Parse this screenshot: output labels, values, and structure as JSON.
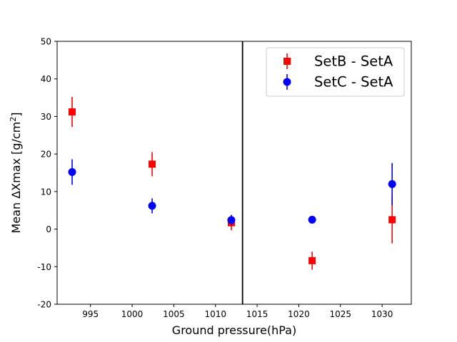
{
  "chart_data": {
    "type": "scatter",
    "xlabel": "Ground pressure(hPa)",
    "ylabel_prefix": "Mean ΔXmax  [g/cm",
    "ylabel_sup": "2",
    "ylabel_suffix": "]",
    "xlim": [
      991,
      1033.5
    ],
    "ylim": [
      -20,
      50
    ],
    "xticks": [
      995,
      1000,
      1005,
      1010,
      1015,
      1020,
      1025,
      1030
    ],
    "yticks": [
      -20,
      -10,
      0,
      10,
      20,
      30,
      40,
      50
    ],
    "vline": 1013.25,
    "legend_position": "top-right",
    "series": [
      {
        "name": "SetB - SetA",
        "color": "#ff0000",
        "marker": "square",
        "points": [
          {
            "x": 992.8,
            "y": 31.2,
            "yerr": 4.0
          },
          {
            "x": 1002.4,
            "y": 17.3,
            "yerr": 3.2
          },
          {
            "x": 1011.9,
            "y": 1.7,
            "yerr": 2.0
          },
          {
            "x": 1021.6,
            "y": -8.4,
            "yerr": 2.4
          },
          {
            "x": 1031.2,
            "y": 2.5,
            "yerr": 6.3
          }
        ]
      },
      {
        "name": "SetC - SetA",
        "color": "#0000ff",
        "marker": "circle",
        "points": [
          {
            "x": 992.8,
            "y": 15.2,
            "yerr": 3.4
          },
          {
            "x": 1002.4,
            "y": 6.2,
            "yerr": 2.0
          },
          {
            "x": 1011.9,
            "y": 2.4,
            "yerr": 1.4
          },
          {
            "x": 1021.6,
            "y": 2.5,
            "yerr": 1.0
          },
          {
            "x": 1031.2,
            "y": 12.0,
            "yerr": 5.6
          }
        ]
      }
    ]
  }
}
